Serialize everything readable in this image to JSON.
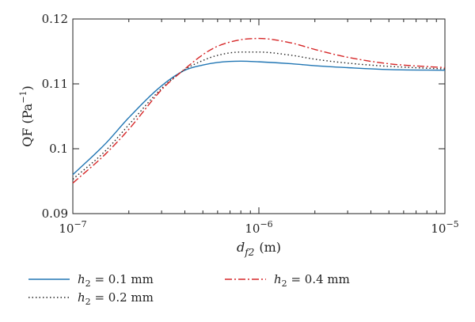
{
  "chart_data": {
    "type": "line",
    "title": "",
    "xscale": "log",
    "xlim": [
      1e-07,
      1e-05
    ],
    "ylim": [
      0.09,
      0.12
    ],
    "x_ticks": [
      1e-07,
      1e-06,
      1e-05
    ],
    "x_tick_labels": [
      {
        "base": "10",
        "exp": "−7"
      },
      {
        "base": "10",
        "exp": "−6"
      },
      {
        "base": "10",
        "exp": "−5"
      }
    ],
    "y_ticks": [
      0.09,
      0.1,
      0.11,
      0.12
    ],
    "y_tick_labels": [
      "0.09",
      "0.1",
      "0.11",
      "0.12"
    ],
    "xlabel": {
      "main": "d",
      "sub": "f2",
      "unit": "(m)"
    },
    "ylabel": {
      "main": "QF (Pa",
      "sup": "−1",
      "close": ")"
    },
    "grid": false,
    "legend_position": "bottom",
    "series": [
      {
        "name": "h2 = 0.1 mm",
        "label_var": "h",
        "label_sub": "2",
        "label_rest": " = 0.1 mm",
        "color": "#2176b4",
        "dash": "",
        "x": [
          1e-07,
          1.5e-07,
          2e-07,
          3e-07,
          4e-07,
          5e-07,
          6e-07,
          8e-07,
          1e-06,
          1.5e-06,
          2e-06,
          3e-06,
          5e-06,
          1e-05
        ],
        "y": [
          0.096,
          0.1008,
          0.1048,
          0.1097,
          0.1121,
          0.1129,
          0.1133,
          0.1135,
          0.1134,
          0.1131,
          0.1128,
          0.1125,
          0.1122,
          0.1121
        ]
      },
      {
        "name": "h2 = 0.2 mm",
        "label_var": "h",
        "label_sub": "2",
        "label_rest": " = 0.2 mm",
        "color": "#222222",
        "dash": "1.5,3",
        "x": [
          1e-07,
          1.5e-07,
          2e-07,
          3e-07,
          4e-07,
          5e-07,
          6e-07,
          8e-07,
          1e-06,
          1.5e-06,
          2e-06,
          3e-06,
          5e-06,
          1e-05
        ],
        "y": [
          0.0953,
          0.0997,
          0.1037,
          0.1093,
          0.1122,
          0.1136,
          0.1144,
          0.1149,
          0.1149,
          0.1144,
          0.1138,
          0.1132,
          0.1127,
          0.1123
        ]
      },
      {
        "name": "h2 = 0.4 mm",
        "label_var": "h",
        "label_sub": "2",
        "label_rest": " = 0.4 mm",
        "color": "#d62728",
        "dash": "9,3,2,3",
        "x": [
          1e-07,
          1.5e-07,
          2e-07,
          3e-07,
          4e-07,
          5e-07,
          6e-07,
          8e-07,
          1e-06,
          1.5e-06,
          2e-06,
          3e-06,
          5e-06,
          1e-05
        ],
        "y": [
          0.0947,
          0.0992,
          0.103,
          0.1091,
          0.1123,
          0.1145,
          0.1158,
          0.1168,
          0.117,
          0.1163,
          0.1153,
          0.1141,
          0.1131,
          0.1125
        ]
      }
    ]
  }
}
